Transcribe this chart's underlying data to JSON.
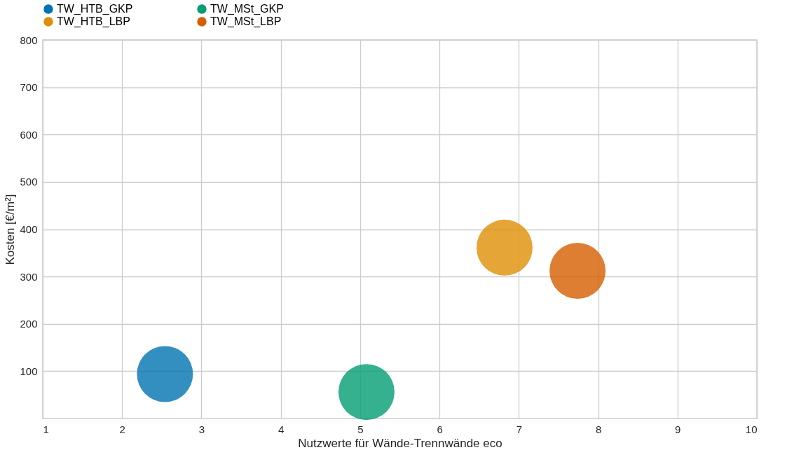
{
  "chart_data": {
    "type": "bubble",
    "xlabel": "Nutzwerte für Wände-Trennwände eco",
    "ylabel": "Kosten [€/m²]",
    "xlim": [
      1,
      10
    ],
    "xticks": [
      1,
      2,
      3,
      4,
      5,
      6,
      7,
      8,
      9,
      10
    ],
    "ylim": [
      0,
      800
    ],
    "yticks": [
      100,
      200,
      300,
      400,
      500,
      600,
      700,
      800
    ],
    "grid": true,
    "legend": "top",
    "series": [
      {
        "name": "TW_HTB_GKP",
        "color": "#0173b2",
        "x": [
          2.54
        ],
        "values": [
          94
        ],
        "sizes": [
          1
        ]
      },
      {
        "name": "TW_HTB_LBP",
        "color": "#de8f05",
        "x": [
          6.82
        ],
        "values": [
          361
        ],
        "sizes": [
          1
        ]
      },
      {
        "name": "TW_MSt_GKP",
        "color": "#029e73",
        "x": [
          5.08
        ],
        "values": [
          56
        ],
        "sizes": [
          1
        ]
      },
      {
        "name": "TW_MSt_LBP",
        "color": "#d55e00",
        "x": [
          7.74
        ],
        "values": [
          312
        ],
        "sizes": [
          1
        ]
      }
    ]
  }
}
